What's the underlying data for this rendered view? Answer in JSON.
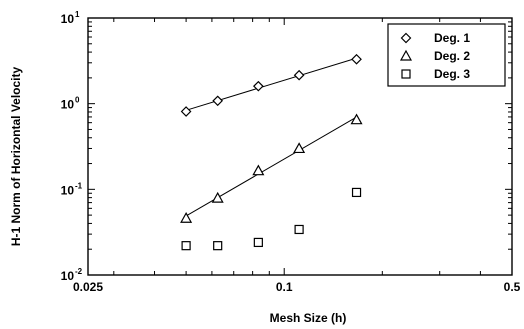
{
  "chart_data": {
    "type": "scatter",
    "xscale": "log",
    "yscale": "log",
    "xlim": [
      0.025,
      0.5
    ],
    "ylim": [
      0.01,
      10
    ],
    "xlabel": "Mesh Size (h)",
    "ylabel": "H-1 Norm of Horizontal Velocity",
    "grid": false,
    "legend_position": "top-right",
    "x_ticks": [
      {
        "value": 0.025,
        "label": "0.025"
      },
      {
        "value": 0.1,
        "label": "0.1"
      },
      {
        "value": 0.5,
        "label": "0.5"
      }
    ],
    "y_ticks": [
      {
        "value": 0.01,
        "base": "10",
        "exp": "-2"
      },
      {
        "value": 0.1,
        "base": "10",
        "exp": "-1"
      },
      {
        "value": 1,
        "base": "10",
        "exp": "0"
      },
      {
        "value": 10,
        "base": "10",
        "exp": "1"
      }
    ],
    "series": [
      {
        "name": "Deg. 1",
        "marker": "diamond",
        "fit_line": true,
        "x": [
          0.05,
          0.0625,
          0.0833,
          0.1111,
          0.1667
        ],
        "y": [
          0.81,
          1.08,
          1.6,
          2.15,
          3.3
        ]
      },
      {
        "name": "Deg. 2",
        "marker": "triangle",
        "fit_line": true,
        "x": [
          0.05,
          0.0625,
          0.0833,
          0.1111,
          0.1667
        ],
        "y": [
          0.046,
          0.079,
          0.165,
          0.3,
          0.65
        ]
      },
      {
        "name": "Deg. 3",
        "marker": "square",
        "fit_line": false,
        "x": [
          0.05,
          0.0625,
          0.0833,
          0.1111,
          0.1667
        ],
        "y": [
          0.022,
          0.022,
          0.024,
          0.034,
          0.092
        ]
      }
    ]
  }
}
